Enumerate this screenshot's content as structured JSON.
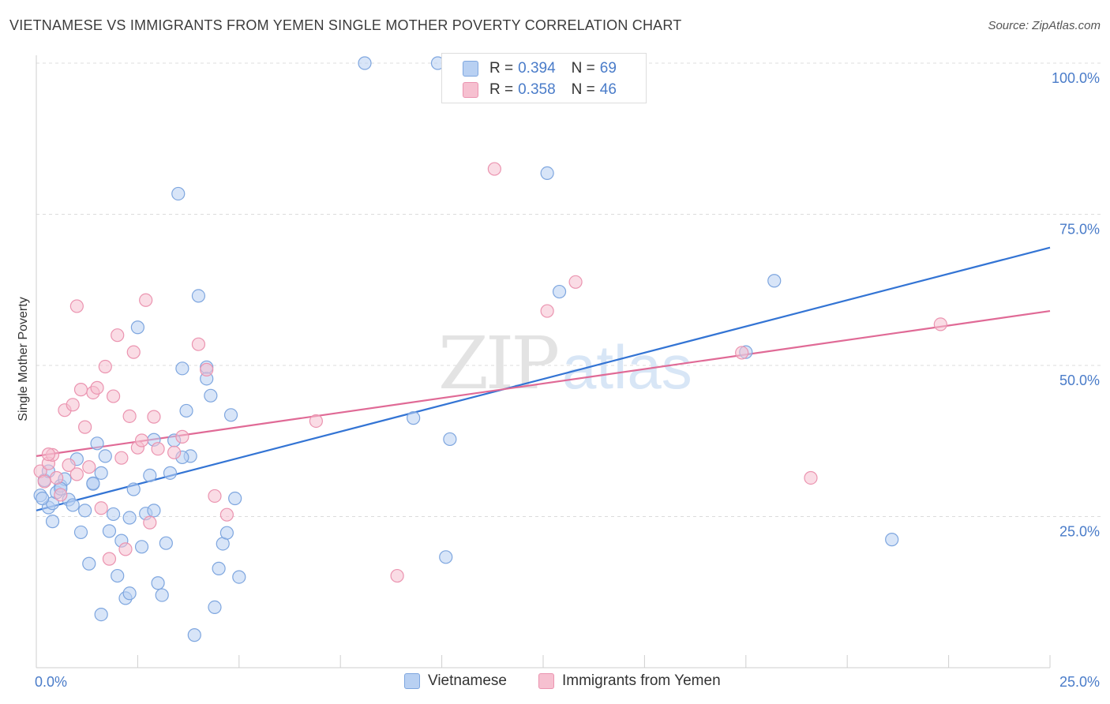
{
  "header": {
    "title": "VIETNAMESE VS IMMIGRANTS FROM YEMEN SINGLE MOTHER POVERTY CORRELATION CHART",
    "source": "Source: ZipAtlas.com"
  },
  "legend": {
    "series": [
      {
        "r_label": "R = ",
        "r_value": "0.394",
        "n_label": "N = ",
        "n_value": "69"
      },
      {
        "r_label": "R = ",
        "r_value": "0.358",
        "n_label": "N = ",
        "n_value": "46"
      }
    ],
    "bottom": [
      "Vietnamese",
      "Immigrants from Yemen"
    ]
  },
  "colors": {
    "blue_fill": "#b8d0f2",
    "blue_stroke": "#7ea6df",
    "blue_line": "#3374d4",
    "pink_fill": "#f6c0d0",
    "pink_stroke": "#eb94b0",
    "pink_line": "#e06a96",
    "tick_text": "#4a7cc9",
    "grid": "#dcdcdc"
  },
  "chart_data": {
    "type": "scatter",
    "title": "VIETNAMESE VS IMMIGRANTS FROM YEMEN SINGLE MOTHER POVERTY CORRELATION CHART",
    "xlabel": "",
    "ylabel": "Single Mother Poverty",
    "xlim": [
      0,
      25
    ],
    "ylim": [
      0,
      100
    ],
    "x_tick_labels": [
      "0.0%",
      "25.0%"
    ],
    "y_tick_labels": [
      "25.0%",
      "50.0%",
      "75.0%",
      "100.0%"
    ],
    "y_ticks": [
      25,
      50,
      75,
      100
    ],
    "watermark": [
      "ZIP",
      "atlas"
    ],
    "series": [
      {
        "name": "Vietnamese",
        "color": "#b8d0f2",
        "trend": {
          "x": [
            0,
            25
          ],
          "y": [
            26.0,
            69.5
          ]
        },
        "points": [
          [
            0.1,
            28.5
          ],
          [
            0.2,
            31.0
          ],
          [
            0.3,
            26.5
          ],
          [
            0.4,
            27.2
          ],
          [
            0.5,
            29.0
          ],
          [
            0.6,
            30.1
          ],
          [
            0.7,
            31.2
          ],
          [
            0.8,
            27.8
          ],
          [
            0.9,
            26.9
          ],
          [
            1.0,
            34.5
          ],
          [
            0.4,
            24.2
          ],
          [
            1.1,
            22.4
          ],
          [
            1.2,
            26.0
          ],
          [
            1.3,
            17.2
          ],
          [
            1.4,
            30.4
          ],
          [
            1.5,
            37.1
          ],
          [
            1.6,
            32.2
          ],
          [
            1.7,
            35.0
          ],
          [
            1.8,
            22.6
          ],
          [
            1.9,
            25.4
          ],
          [
            2.0,
            15.2
          ],
          [
            2.1,
            21.0
          ],
          [
            2.2,
            11.5
          ],
          [
            2.3,
            12.3
          ],
          [
            2.4,
            29.5
          ],
          [
            2.5,
            56.3
          ],
          [
            2.6,
            20.0
          ],
          [
            2.7,
            25.5
          ],
          [
            2.8,
            31.8
          ],
          [
            2.9,
            37.7
          ],
          [
            3.0,
            14.0
          ],
          [
            3.1,
            12.0
          ],
          [
            3.2,
            20.6
          ],
          [
            3.3,
            32.2
          ],
          [
            3.4,
            37.6
          ],
          [
            3.5,
            78.4
          ],
          [
            3.6,
            49.5
          ],
          [
            3.7,
            42.5
          ],
          [
            3.8,
            35.0
          ],
          [
            3.9,
            5.4
          ],
          [
            4.0,
            61.5
          ],
          [
            4.2,
            49.7
          ],
          [
            4.3,
            45.0
          ],
          [
            4.4,
            10.0
          ],
          [
            4.5,
            16.4
          ],
          [
            4.6,
            20.5
          ],
          [
            4.7,
            22.3
          ],
          [
            4.8,
            41.8
          ],
          [
            4.9,
            28.0
          ],
          [
            5.0,
            15.0
          ],
          [
            8.1,
            100.0
          ],
          [
            9.9,
            100.0
          ],
          [
            12.6,
            81.8
          ],
          [
            12.9,
            62.2
          ],
          [
            18.2,
            64.0
          ],
          [
            17.5,
            52.2
          ],
          [
            21.1,
            21.2
          ],
          [
            10.1,
            18.3
          ],
          [
            10.2,
            37.8
          ],
          [
            9.3,
            41.3
          ],
          [
            1.6,
            8.8
          ],
          [
            0.6,
            29.6
          ],
          [
            1.4,
            30.5
          ],
          [
            2.3,
            24.8
          ],
          [
            0.15,
            28.0
          ],
          [
            0.3,
            32.5
          ],
          [
            2.9,
            26.0
          ],
          [
            3.6,
            34.8
          ],
          [
            4.2,
            47.8
          ]
        ]
      },
      {
        "name": "Immigrants from Yemen",
        "color": "#f6c0d0",
        "trend": {
          "x": [
            0,
            25
          ],
          "y": [
            35.0,
            59.0
          ]
        },
        "points": [
          [
            0.1,
            32.5
          ],
          [
            0.2,
            30.8
          ],
          [
            0.3,
            33.8
          ],
          [
            0.4,
            35.2
          ],
          [
            0.5,
            31.4
          ],
          [
            0.6,
            28.6
          ],
          [
            0.7,
            42.6
          ],
          [
            0.8,
            33.5
          ],
          [
            0.9,
            43.5
          ],
          [
            1.0,
            59.8
          ],
          [
            1.1,
            46.0
          ],
          [
            1.2,
            39.8
          ],
          [
            1.3,
            33.2
          ],
          [
            1.4,
            45.5
          ],
          [
            1.5,
            46.3
          ],
          [
            1.6,
            26.4
          ],
          [
            1.7,
            49.8
          ],
          [
            1.8,
            18.0
          ],
          [
            1.9,
            44.9
          ],
          [
            2.0,
            55.0
          ],
          [
            2.1,
            34.7
          ],
          [
            2.2,
            19.6
          ],
          [
            2.3,
            41.6
          ],
          [
            2.4,
            52.2
          ],
          [
            2.5,
            36.4
          ],
          [
            2.6,
            37.6
          ],
          [
            2.7,
            60.8
          ],
          [
            2.8,
            24.0
          ],
          [
            2.9,
            41.5
          ],
          [
            3.0,
            36.2
          ],
          [
            3.4,
            35.6
          ],
          [
            3.6,
            38.2
          ],
          [
            4.0,
            53.5
          ],
          [
            4.2,
            49.3
          ],
          [
            4.4,
            28.4
          ],
          [
            4.7,
            25.3
          ],
          [
            6.9,
            40.8
          ],
          [
            8.9,
            15.2
          ],
          [
            11.3,
            82.5
          ],
          [
            12.6,
            59.0
          ],
          [
            13.3,
            63.8
          ],
          [
            17.4,
            52.1
          ],
          [
            22.3,
            56.8
          ],
          [
            19.1,
            31.4
          ],
          [
            0.3,
            35.3
          ],
          [
            1.0,
            32.0
          ]
        ]
      }
    ]
  }
}
